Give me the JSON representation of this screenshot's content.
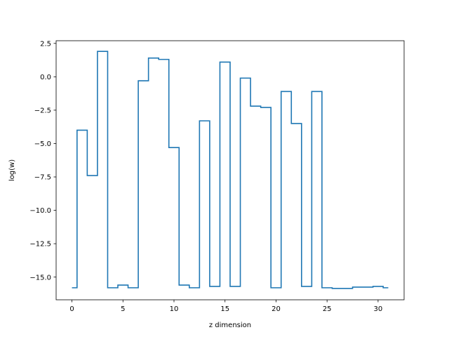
{
  "chart_data": {
    "type": "line",
    "step": "mid",
    "title": "",
    "xlabel": "z dimension",
    "ylabel": "log(w)",
    "xlim": [
      -1.55,
      32.55
    ],
    "ylim": [
      -16.7,
      2.7
    ],
    "xticks": [
      0,
      5,
      10,
      15,
      20,
      25,
      30
    ],
    "yticks": [
      2.5,
      0.0,
      -2.5,
      -5.0,
      -7.5,
      -10.0,
      -12.5,
      -15.0
    ],
    "xtick_labels": [
      "0",
      "5",
      "10",
      "15",
      "20",
      "25",
      "30"
    ],
    "ytick_labels": [
      "2.5",
      "0.0",
      "−2.5",
      "−5.0",
      "−7.5",
      "−10.0",
      "−12.5",
      "−15.0"
    ],
    "series": [
      {
        "color": "#1f77b4",
        "x": [
          0,
          1,
          2,
          3,
          4,
          5,
          6,
          7,
          8,
          9,
          10,
          11,
          12,
          13,
          14,
          15,
          16,
          17,
          18,
          19,
          20,
          21,
          22,
          23,
          24,
          25,
          26,
          27,
          28,
          29,
          30,
          31
        ],
        "y": [
          -15.8,
          -4.0,
          -7.4,
          1.9,
          -15.8,
          -15.6,
          -15.8,
          -0.3,
          1.4,
          1.3,
          -5.3,
          -15.6,
          -15.8,
          -3.3,
          -15.7,
          1.1,
          -15.7,
          -0.1,
          -2.2,
          -2.3,
          -15.8,
          -1.1,
          -3.5,
          -15.7,
          -1.1,
          -15.8,
          -15.85,
          -15.85,
          -15.75,
          -15.75,
          -15.7,
          -15.8
        ]
      }
    ],
    "grid": false,
    "legend": "none"
  }
}
